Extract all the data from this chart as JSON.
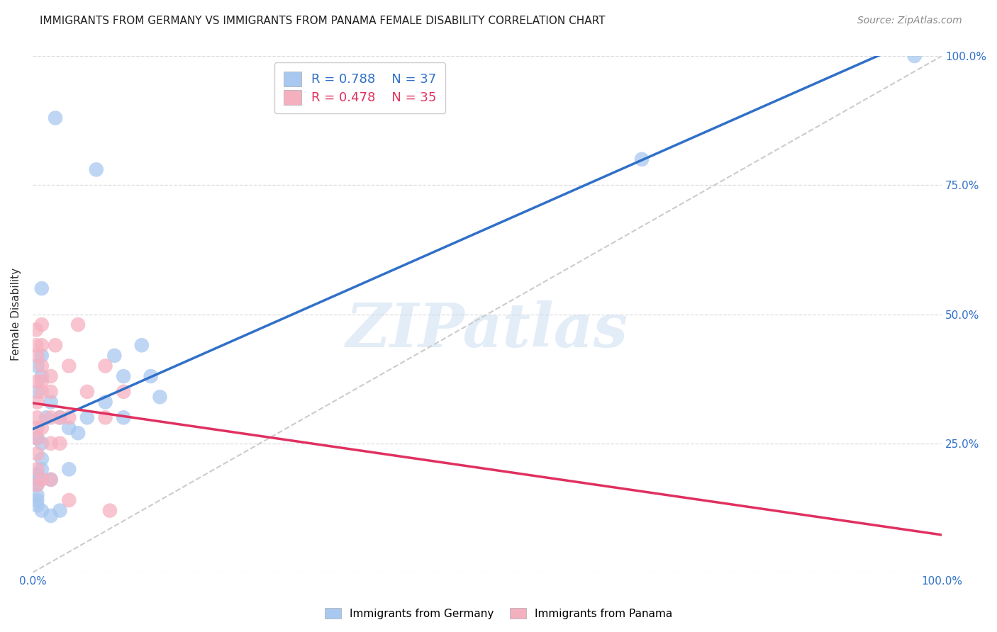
{
  "title": "IMMIGRANTS FROM GERMANY VS IMMIGRANTS FROM PANAMA FEMALE DISABILITY CORRELATION CHART",
  "source": "Source: ZipAtlas.com",
  "ylabel": "Female Disability",
  "xlim": [
    0.0,
    1.0
  ],
  "ylim": [
    0.0,
    1.0
  ],
  "germany_R": 0.788,
  "germany_N": 37,
  "panama_R": 0.478,
  "panama_N": 35,
  "germany_color": "#A8C8F0",
  "panama_color": "#F5B0C0",
  "germany_line_color": "#3070C8",
  "panama_line_color": "#E03060",
  "diagonal_color": "#CCCCCC",
  "background_color": "#FFFFFF",
  "grid_color": "#DDDDDD",
  "watermark_text": "ZIPatlas",
  "germany_x": [
    0.97,
    0.025,
    0.01,
    0.01,
    0.005,
    0.01,
    0.005,
    0.02,
    0.015,
    0.03,
    0.04,
    0.05,
    0.005,
    0.01,
    0.01,
    0.01,
    0.005,
    0.005,
    0.005,
    0.005,
    0.005,
    0.005,
    0.07,
    0.09,
    0.1,
    0.1,
    0.12,
    0.13,
    0.14,
    0.67,
    0.01,
    0.02,
    0.02,
    0.03,
    0.04,
    0.06,
    0.08
  ],
  "germany_y": [
    1.0,
    0.88,
    0.55,
    0.42,
    0.4,
    0.38,
    0.35,
    0.33,
    0.3,
    0.3,
    0.28,
    0.27,
    0.26,
    0.25,
    0.22,
    0.2,
    0.19,
    0.18,
    0.17,
    0.15,
    0.14,
    0.13,
    0.78,
    0.42,
    0.38,
    0.3,
    0.44,
    0.38,
    0.34,
    0.8,
    0.12,
    0.11,
    0.18,
    0.12,
    0.2,
    0.3,
    0.33
  ],
  "panama_x": [
    0.004,
    0.004,
    0.005,
    0.005,
    0.005,
    0.005,
    0.005,
    0.005,
    0.005,
    0.005,
    0.005,
    0.01,
    0.01,
    0.01,
    0.01,
    0.01,
    0.01,
    0.01,
    0.02,
    0.02,
    0.02,
    0.02,
    0.02,
    0.025,
    0.03,
    0.03,
    0.04,
    0.04,
    0.04,
    0.05,
    0.06,
    0.08,
    0.08,
    0.085,
    0.1
  ],
  "panama_y": [
    0.47,
    0.44,
    0.42,
    0.37,
    0.33,
    0.3,
    0.28,
    0.26,
    0.23,
    0.2,
    0.17,
    0.48,
    0.44,
    0.4,
    0.37,
    0.35,
    0.28,
    0.18,
    0.38,
    0.35,
    0.3,
    0.25,
    0.18,
    0.44,
    0.3,
    0.25,
    0.4,
    0.3,
    0.14,
    0.48,
    0.35,
    0.4,
    0.3,
    0.12,
    0.35
  ],
  "legend_label_germany": "R = 0.788    N = 37",
  "legend_label_panama": "R = 0.478    N = 35",
  "bottom_legend_germany": "Immigrants from Germany",
  "bottom_legend_panama": "Immigrants from Panama"
}
